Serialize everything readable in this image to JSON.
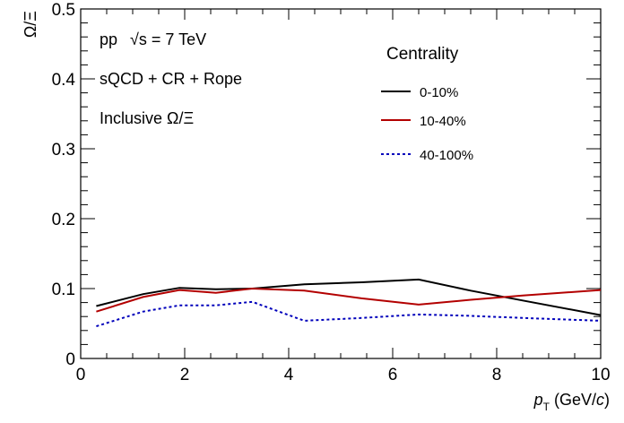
{
  "chart_data": {
    "type": "line",
    "xlabel": "p_T (GeV/c)",
    "ylabel": "Ω/Ξ",
    "xlim": [
      0,
      10
    ],
    "ylim": [
      0,
      0.5
    ],
    "x_ticks": [
      0,
      2,
      4,
      6,
      8,
      10
    ],
    "y_ticks": [
      0,
      0.1,
      0.2,
      0.3,
      0.4,
      0.5
    ],
    "x_tick_labels": [
      "0",
      "2",
      "4",
      "6",
      "8",
      "10"
    ],
    "y_tick_labels": [
      "0",
      "0.1",
      "0.2",
      "0.3",
      "0.4",
      "0.5"
    ],
    "grid": false,
    "legend": {
      "title": "Centrality",
      "placement": "top-right"
    },
    "annotations": [
      "pp",
      "√s = 7 TeV",
      "sQCD + CR + Rope",
      "Inclusive Ω/Ξ"
    ],
    "series": [
      {
        "name": "0-10%",
        "color": "#000000",
        "style": "solid",
        "x": [
          0.3,
          1.2,
          1.9,
          2.6,
          3.3,
          4.3,
          5.4,
          6.5,
          7.5,
          8.5,
          10.0
        ],
        "y": [
          0.075,
          0.092,
          0.101,
          0.099,
          0.1,
          0.106,
          0.109,
          0.113,
          0.097,
          0.083,
          0.062
        ]
      },
      {
        "name": "10-40%",
        "color": "#b30000",
        "style": "solid",
        "x": [
          0.3,
          1.2,
          1.9,
          2.6,
          3.3,
          4.3,
          5.4,
          6.5,
          7.5,
          8.5,
          10.0
        ],
        "y": [
          0.067,
          0.088,
          0.098,
          0.094,
          0.1,
          0.097,
          0.086,
          0.077,
          0.084,
          0.09,
          0.098
        ]
      },
      {
        "name": "40-100%",
        "color": "#0000bb",
        "style": "dotted",
        "x": [
          0.3,
          1.2,
          1.9,
          2.6,
          3.3,
          4.3,
          5.4,
          6.5,
          7.5,
          8.5,
          10.0
        ],
        "y": [
          0.046,
          0.067,
          0.076,
          0.076,
          0.081,
          0.054,
          0.058,
          0.063,
          0.061,
          0.058,
          0.054
        ]
      }
    ]
  }
}
